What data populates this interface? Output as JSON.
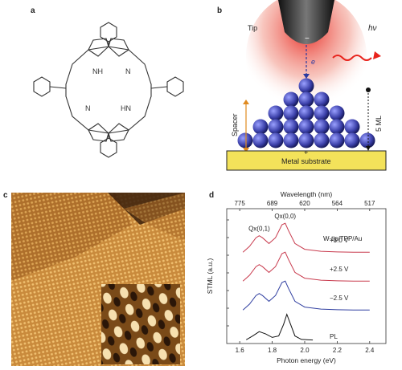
{
  "panels": {
    "a": {
      "letter": "a"
    },
    "b": {
      "letter": "b",
      "tip_label": "Tip",
      "tip_charge": "−",
      "photon_label": "hν",
      "electron_label": "e",
      "spacer_label": "Spacer",
      "thickness_label": "5 ML",
      "substrate_charge": "+",
      "substrate_label": "Metal substrate",
      "colors": {
        "tip_glow": "#e8221b",
        "substrate": "#f3e25a",
        "sphere": "#3a3fa8",
        "spacer_arrow": "#e08a1e"
      }
    },
    "c": {
      "letter": "c"
    },
    "d": {
      "letter": "d"
    }
  },
  "chart_data": {
    "type": "line",
    "title": "",
    "top_axis_label": "Wavelength (nm)",
    "top_ticks": [
      "775",
      "689",
      "620",
      "564",
      "517"
    ],
    "top_tick_energies": [
      1.6,
      1.8,
      2.0,
      2.2,
      2.4
    ],
    "xlabel": "Photon energy (eV)",
    "x_ticks": [
      "1.6",
      "1.8",
      "2.0",
      "2.2",
      "2.4"
    ],
    "xlim": [
      1.52,
      2.5
    ],
    "ylabel": "STML (a.u.)",
    "sample_label": "W-tip/TPP/Au",
    "peak_labels": [
      {
        "text": "Qx(0,0)",
        "x": 1.88
      },
      {
        "text": "Qx(0,1)",
        "x": 1.72
      }
    ],
    "series": [
      {
        "name": "+3.0 V",
        "color": "#c83a4d",
        "offset": 3.0,
        "x": [
          1.62,
          1.66,
          1.7,
          1.72,
          1.74,
          1.78,
          1.82,
          1.86,
          1.88,
          1.9,
          1.94,
          2.0,
          2.1,
          2.2,
          2.3,
          2.4
        ],
        "y": [
          0.05,
          0.25,
          0.55,
          0.62,
          0.55,
          0.35,
          0.55,
          1.0,
          1.05,
          0.8,
          0.35,
          0.15,
          0.08,
          0.06,
          0.05,
          0.05
        ]
      },
      {
        "name": "+2.5 V",
        "color": "#c83a4d",
        "offset": 2.0,
        "x": [
          1.62,
          1.66,
          1.7,
          1.72,
          1.74,
          1.78,
          1.82,
          1.86,
          1.88,
          1.9,
          1.94,
          2.0,
          2.1,
          2.2,
          2.3,
          2.4
        ],
        "y": [
          0.05,
          0.25,
          0.55,
          0.62,
          0.55,
          0.35,
          0.55,
          1.0,
          1.05,
          0.8,
          0.35,
          0.15,
          0.08,
          0.06,
          0.05,
          0.05
        ]
      },
      {
        "name": "−2.5 V",
        "color": "#2f3ea0",
        "offset": 1.0,
        "x": [
          1.62,
          1.66,
          1.7,
          1.72,
          1.74,
          1.78,
          1.82,
          1.86,
          1.88,
          1.9,
          1.94,
          2.0,
          2.1,
          2.2,
          2.3,
          2.4
        ],
        "y": [
          0.05,
          0.25,
          0.55,
          0.62,
          0.55,
          0.35,
          0.55,
          1.0,
          1.05,
          0.8,
          0.35,
          0.15,
          0.08,
          0.06,
          0.05,
          0.05
        ]
      },
      {
        "name": "PL",
        "color": "#111111",
        "offset": 0.0,
        "x": [
          1.64,
          1.68,
          1.72,
          1.76,
          1.8,
          1.84,
          1.87,
          1.89,
          1.91,
          1.94,
          1.98,
          2.05
        ],
        "y": [
          0.02,
          0.15,
          0.3,
          0.22,
          0.1,
          0.15,
          0.55,
          0.9,
          0.6,
          0.15,
          0.03,
          0.01
        ]
      }
    ]
  }
}
